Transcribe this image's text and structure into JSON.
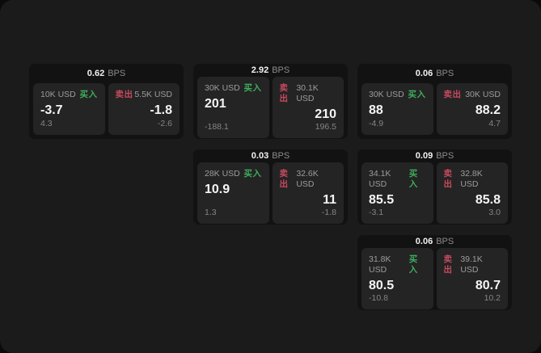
{
  "labels": {
    "buy": "买入",
    "sell": "卖出",
    "bps_unit": "BPS"
  },
  "colors": {
    "surface_bg": "#1b1b1b",
    "card_bg": "#121212",
    "panel_bg": "#242424",
    "buy_green": "#3fae5c",
    "sell_red": "#c8495e"
  },
  "cards": [
    {
      "bps": "0.62",
      "row": 1,
      "col": 1,
      "buy": {
        "amount": "10K USD",
        "value": "-3.7",
        "delta": "4.3"
      },
      "sell": {
        "amount": "5.5K USD",
        "value": "-1.8",
        "delta": "-2.6"
      }
    },
    {
      "bps": "2.92",
      "row": 1,
      "col": 2,
      "buy": {
        "amount": "30K USD",
        "value": "201",
        "delta": "-188.1"
      },
      "sell": {
        "amount": "30.1K USD",
        "value": "210",
        "delta": "196.5"
      }
    },
    {
      "bps": "0.06",
      "row": 1,
      "col": 3,
      "buy": {
        "amount": "30K USD",
        "value": "88",
        "delta": "-4.9"
      },
      "sell": {
        "amount": "30K USD",
        "value": "88.2",
        "delta": "4.7"
      }
    },
    {
      "bps": "0.03",
      "row": 2,
      "col": 2,
      "buy": {
        "amount": "28K USD",
        "value": "10.9",
        "delta": "1.3"
      },
      "sell": {
        "amount": "32.6K USD",
        "value": "11",
        "delta": "-1.8"
      }
    },
    {
      "bps": "0.09",
      "row": 2,
      "col": 3,
      "buy": {
        "amount": "34.1K USD",
        "value": "85.5",
        "delta": "-3.1"
      },
      "sell": {
        "amount": "32.8K USD",
        "value": "85.8",
        "delta": "3.0"
      }
    },
    {
      "bps": "0.06",
      "row": 3,
      "col": 3,
      "buy": {
        "amount": "31.8K USD",
        "value": "80.5",
        "delta": "-10.8"
      },
      "sell": {
        "amount": "39.1K USD",
        "value": "80.7",
        "delta": "10.2"
      }
    }
  ]
}
